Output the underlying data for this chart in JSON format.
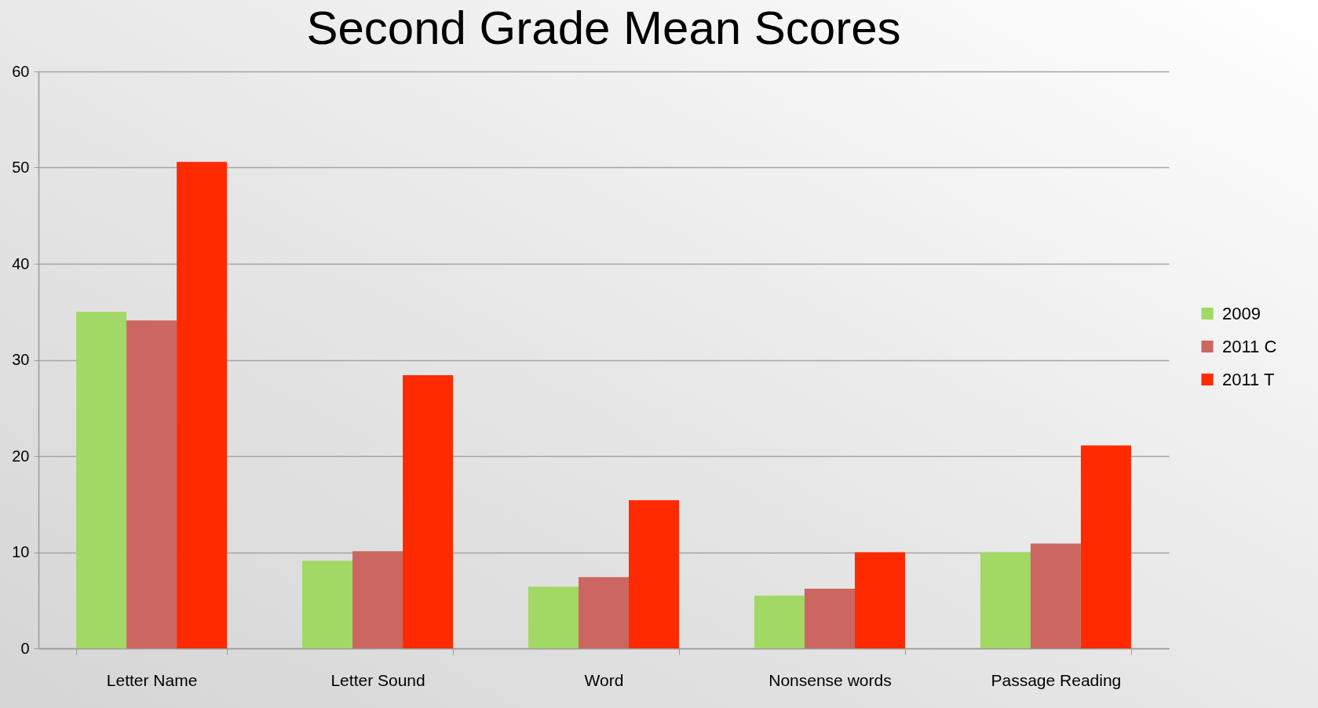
{
  "chart_data": {
    "type": "bar",
    "title": "Second Grade Mean Scores",
    "categories": [
      "Letter Name",
      "Letter Sound",
      "Word",
      "Nonsense words",
      "Passage Reading"
    ],
    "series": [
      {
        "name": "2009",
        "color": "#a2d864",
        "values": [
          35,
          9.1,
          6.4,
          5.5,
          10.0
        ]
      },
      {
        "name": "2011 C",
        "color": "#cc6660",
        "values": [
          34.1,
          10.1,
          7.4,
          6.2,
          10.9
        ]
      },
      {
        "name": "2011 T",
        "color": "#ff2a00",
        "values": [
          50.6,
          28.4,
          15.4,
          10.0,
          21.1
        ]
      }
    ],
    "ylim": [
      0,
      60
    ],
    "yticks": [
      0,
      10,
      20,
      30,
      40,
      50,
      60
    ],
    "grid": "y",
    "legend": "right"
  }
}
